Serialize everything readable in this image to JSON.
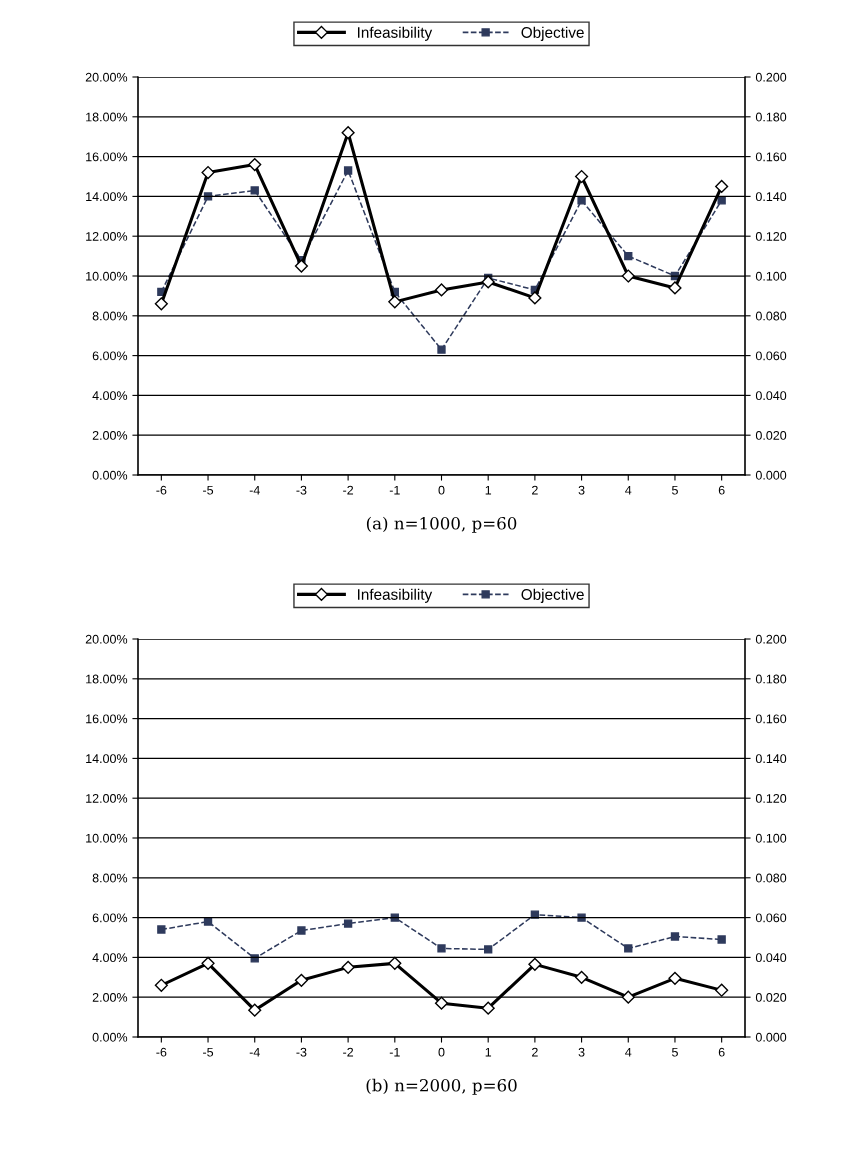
{
  "chart_data": [
    {
      "type": "line",
      "categories": [
        "-6",
        "-5",
        "-4",
        "-3",
        "-2",
        "-1",
        "0",
        "1",
        "2",
        "3",
        "4",
        "5",
        "6"
      ],
      "series": [
        {
          "name": "Infeasibility",
          "color": "#000000",
          "marker": "diamond",
          "line_style": "solid",
          "values": [
            8.6,
            15.2,
            15.6,
            10.5,
            17.2,
            8.7,
            9.3,
            9.7,
            8.9,
            15.0,
            10.0,
            9.4,
            14.5
          ]
        },
        {
          "name": "Objective",
          "color": "#2e3a5c",
          "marker": "square",
          "line_style": "dashed",
          "axis": "y2",
          "values": [
            0.092,
            0.14,
            0.143,
            0.108,
            0.153,
            0.092,
            0.063,
            0.099,
            0.093,
            0.138,
            0.11,
            0.1,
            0.138
          ]
        }
      ],
      "ylim": [
        0,
        20
      ],
      "yticks": [
        {
          "value": 0,
          "label": "0.00%"
        },
        {
          "value": 2,
          "label": "2.00%"
        },
        {
          "value": 4,
          "label": "4.00%"
        },
        {
          "value": 6,
          "label": "6.00%"
        },
        {
          "value": 8,
          "label": "8.00%"
        },
        {
          "value": 10,
          "label": "10.00%"
        },
        {
          "value": 12,
          "label": "12.00%"
        },
        {
          "value": 14,
          "label": "14.00%"
        },
        {
          "value": 16,
          "label": "16.00%"
        },
        {
          "value": 18,
          "label": "18.00%"
        },
        {
          "value": 20,
          "label": "20.00%"
        }
      ],
      "y2lim": [
        0,
        0.2
      ],
      "y2ticks": [
        {
          "value": 0,
          "label": "0.000"
        },
        {
          "value": 0.02,
          "label": "0.020"
        },
        {
          "value": 0.04,
          "label": "0.040"
        },
        {
          "value": 0.06,
          "label": "0.060"
        },
        {
          "value": 0.08,
          "label": "0.080"
        },
        {
          "value": 0.1,
          "label": "0.100"
        },
        {
          "value": 0.12,
          "label": "0.120"
        },
        {
          "value": 0.14,
          "label": "0.140"
        },
        {
          "value": 0.16,
          "label": "0.160"
        },
        {
          "value": 0.18,
          "label": "0.180"
        },
        {
          "value": 0.2,
          "label": "0.200"
        }
      ],
      "grid": "y",
      "legend": "top",
      "annotations": [
        "(a) n=1000, p=60"
      ]
    },
    {
      "type": "line",
      "categories": [
        "-6",
        "-5",
        "-4",
        "-3",
        "-2",
        "-1",
        "0",
        "1",
        "2",
        "3",
        "4",
        "5",
        "6"
      ],
      "series": [
        {
          "name": "Infeasibility",
          "color": "#000000",
          "marker": "diamond",
          "line_style": "solid",
          "values": [
            2.6,
            3.7,
            1.35,
            2.85,
            3.5,
            3.7,
            1.7,
            1.45,
            3.65,
            3.0,
            2.0,
            2.95,
            2.35
          ]
        },
        {
          "name": "Objective",
          "color": "#2e3a5c",
          "marker": "square",
          "line_style": "dashed",
          "axis": "y2",
          "values": [
            0.054,
            0.058,
            0.0395,
            0.0535,
            0.057,
            0.06,
            0.0445,
            0.044,
            0.0615,
            0.06,
            0.0445,
            0.0505,
            0.049
          ]
        }
      ],
      "ylim": [
        0,
        20
      ],
      "yticks": [
        {
          "value": 0,
          "label": "0.00%"
        },
        {
          "value": 2,
          "label": "2.00%"
        },
        {
          "value": 4,
          "label": "4.00%"
        },
        {
          "value": 6,
          "label": "6.00%"
        },
        {
          "value": 8,
          "label": "8.00%"
        },
        {
          "value": 10,
          "label": "10.00%"
        },
        {
          "value": 12,
          "label": "12.00%"
        },
        {
          "value": 14,
          "label": "14.00%"
        },
        {
          "value": 16,
          "label": "16.00%"
        },
        {
          "value": 18,
          "label": "18.00%"
        },
        {
          "value": 20,
          "label": "20.00%"
        }
      ],
      "y2lim": [
        0,
        0.2
      ],
      "y2ticks": [
        {
          "value": 0,
          "label": "0.000"
        },
        {
          "value": 0.02,
          "label": "0.020"
        },
        {
          "value": 0.04,
          "label": "0.040"
        },
        {
          "value": 0.06,
          "label": "0.060"
        },
        {
          "value": 0.08,
          "label": "0.080"
        },
        {
          "value": 0.1,
          "label": "0.100"
        },
        {
          "value": 0.12,
          "label": "0.120"
        },
        {
          "value": 0.14,
          "label": "0.140"
        },
        {
          "value": 0.16,
          "label": "0.160"
        },
        {
          "value": 0.18,
          "label": "0.180"
        },
        {
          "value": 0.2,
          "label": "0.200"
        }
      ],
      "grid": "y",
      "legend": "top",
      "annotations": [
        "(b) n=2000, p=60"
      ]
    }
  ]
}
